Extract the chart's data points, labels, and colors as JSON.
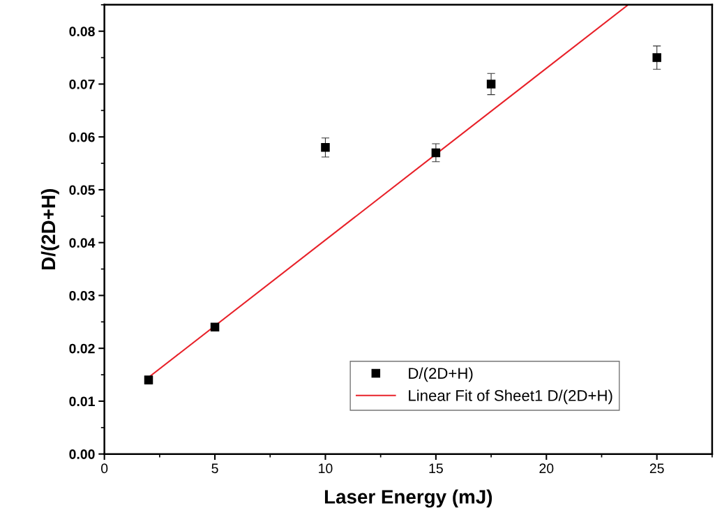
{
  "chart_data": {
    "type": "scatter",
    "xlabel": "Laser Energy (mJ)",
    "ylabel": "D/(2D+H)",
    "xlim": [
      0,
      27.5
    ],
    "xticks": [
      0,
      5,
      10,
      15,
      20,
      25
    ],
    "ylim": [
      0,
      0.085
    ],
    "yticks": [
      {
        "value": 0,
        "label": "0.00"
      },
      {
        "value": 0.01,
        "label": "0.01"
      },
      {
        "value": 0.02,
        "label": "0.02"
      },
      {
        "value": 0.03,
        "label": "0.03"
      },
      {
        "value": 0.04,
        "label": "0.04"
      },
      {
        "value": 0.05,
        "label": "0.05"
      },
      {
        "value": 0.06,
        "label": "0.06"
      },
      {
        "value": 0.07,
        "label": "0.07"
      },
      {
        "value": 0.08,
        "label": "0.08"
      }
    ],
    "grid": false,
    "legend": "bottom right",
    "series": [
      {
        "name": "D/(2D+H)",
        "marker": "square",
        "color": "#000000",
        "x": [
          2,
          5,
          10,
          15,
          17.5,
          25
        ],
        "values": [
          0.014,
          0.024,
          0.058,
          0.057,
          0.07,
          0.075
        ],
        "errors": [
          0.0007,
          0.0007,
          0.0018,
          0.0017,
          0.002,
          0.0022
        ]
      },
      {
        "name": "Linear Fit of Sheet1 D/(2D+H)",
        "type": "line",
        "line_style": "solid",
        "color": "#e8222a",
        "x": [
          2,
          23.7
        ],
        "values": [
          0.0145,
          0.085
        ]
      }
    ]
  }
}
